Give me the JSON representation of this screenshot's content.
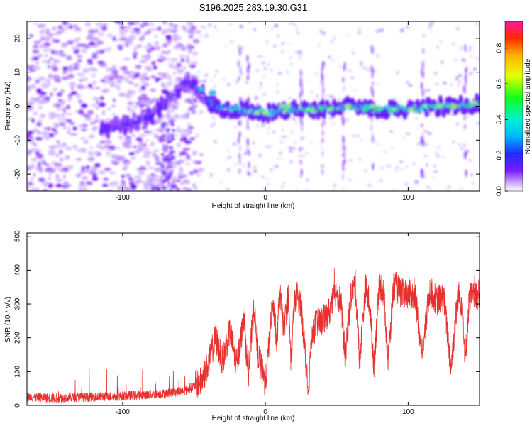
{
  "title": "S196.2025.283.19.30.G31",
  "chart_data": [
    {
      "type": "heatmap",
      "xlabel": "Height of straight line (km)",
      "ylabel": "Frequency (Hz)",
      "xlim": [
        -167,
        150
      ],
      "ylim": [
        -25,
        25
      ],
      "xticks": [
        -100,
        0,
        100
      ],
      "yticks": [
        -20,
        -10,
        0,
        10,
        20
      ],
      "colorbar": {
        "label": "Normalized spectral amplitude",
        "range": [
          0,
          0.95
        ],
        "ticks": [
          0.0,
          0.2,
          0.4,
          0.6,
          0.8
        ]
      },
      "ridge": {
        "description_points_x": [
          -110,
          -80,
          -55,
          -45,
          -35,
          -20,
          0,
          20,
          40,
          60,
          80,
          100,
          120,
          140,
          150
        ],
        "description_points_y": [
          -7,
          -3,
          7,
          4,
          0,
          -1,
          -2,
          -1,
          -1,
          0,
          -1,
          -1,
          0,
          0,
          1
        ],
        "peak_amplitude": 0.95
      }
    },
    {
      "type": "line",
      "xlabel": "Height of straight line (km)",
      "ylabel": "SNR (10 * v/v)",
      "xlim": [
        -167,
        150
      ],
      "ylim": [
        0,
        510
      ],
      "xticks": [
        -100,
        0,
        100
      ],
      "yticks": [
        0,
        100,
        200,
        300,
        400,
        500
      ],
      "color": "#e8312f",
      "series": [
        {
          "name": "SNR",
          "x": [
            -167,
            -150,
            -130,
            -110,
            -90,
            -70,
            -55,
            -45,
            -40,
            -35,
            -30,
            -25,
            -20,
            -15,
            -12,
            -8,
            -5,
            0,
            3,
            5,
            8,
            10,
            13,
            16,
            18,
            20,
            22,
            25,
            28,
            30,
            32,
            35,
            40,
            45,
            50,
            53,
            56,
            60,
            63,
            66,
            70,
            73,
            76,
            80,
            83,
            86,
            90,
            95,
            100,
            105,
            110,
            115,
            120,
            125,
            130,
            135,
            138,
            140,
            143,
            145,
            150
          ],
          "y": [
            25,
            22,
            24,
            26,
            30,
            35,
            45,
            70,
            120,
            200,
            130,
            220,
            120,
            260,
            80,
            300,
            150,
            60,
            200,
            310,
            180,
            330,
            230,
            320,
            130,
            290,
            330,
            300,
            150,
            30,
            180,
            240,
            250,
            280,
            340,
            300,
            140,
            330,
            360,
            130,
            350,
            300,
            120,
            360,
            330,
            130,
            360,
            330,
            330,
            320,
            150,
            340,
            310,
            320,
            110,
            330,
            300,
            130,
            330,
            320,
            330
          ]
        }
      ]
    }
  ]
}
